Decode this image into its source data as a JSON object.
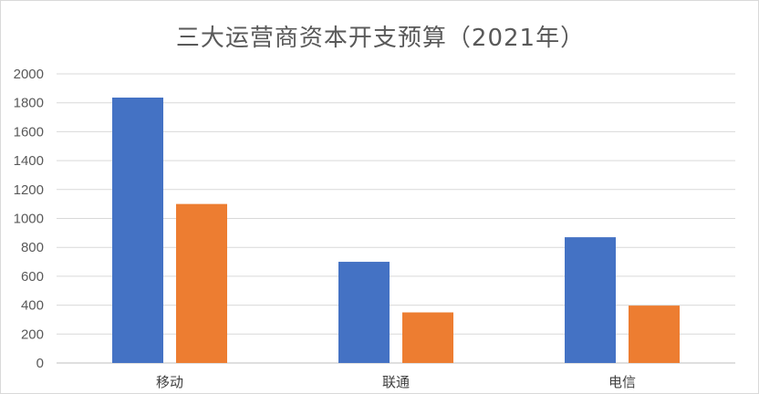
{
  "chart_data": {
    "type": "bar",
    "title": "三大运营商资本开支预算（2021年）",
    "xlabel": "",
    "ylabel": "",
    "categories": [
      "移动",
      "联通",
      "电信"
    ],
    "series": [
      {
        "values": [
          1836,
          700,
          870
        ],
        "color": "#4472c4"
      },
      {
        "values": [
          1100,
          350,
          397
        ],
        "color": "#ed7d31"
      }
    ],
    "ylim": [
      0,
      2000
    ],
    "yticks": [
      "0",
      "200",
      "400",
      "600",
      "800",
      "1000",
      "1200",
      "1400",
      "1600",
      "1800",
      "2000"
    ],
    "grid": true,
    "legend": "none"
  }
}
